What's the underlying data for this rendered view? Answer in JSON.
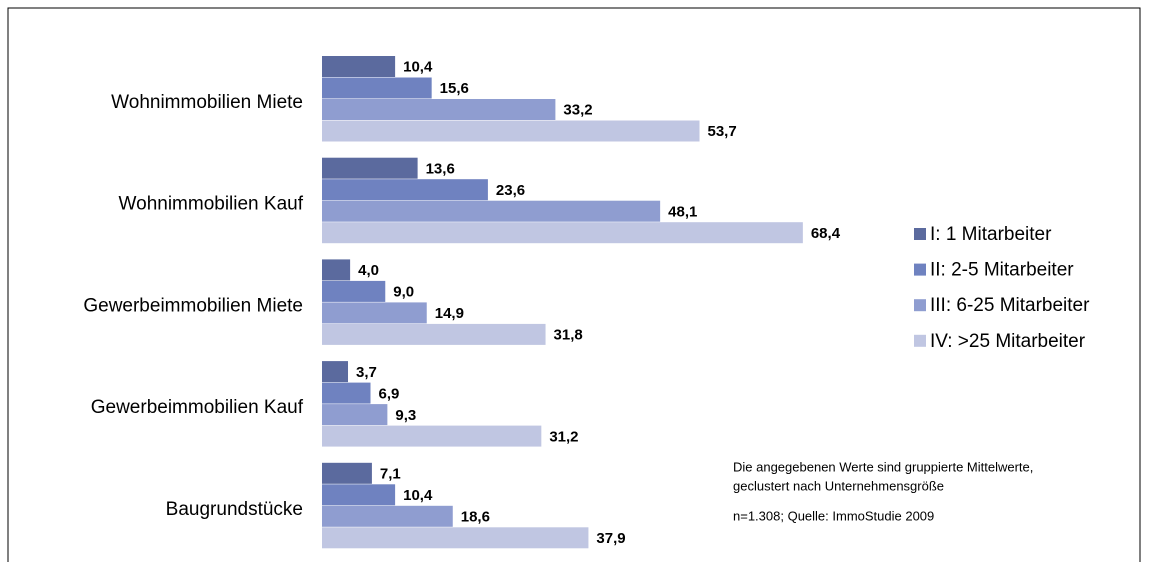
{
  "chart_data": {
    "type": "hbar",
    "categories": [
      "Wohnimmobilien Miete",
      "Wohnimmobilien Kauf",
      "Gewerbeimmobilien Miete",
      "Gewerbeimmobilien Kauf",
      "Baugrundstücke"
    ],
    "series": [
      {
        "name": "I: 1 Mitarbeiter",
        "color": "#5b6a9e",
        "values": [
          10.4,
          13.6,
          4.0,
          3.7,
          7.1
        ],
        "value_labels": [
          "10,4",
          "13,6",
          "4,0",
          "3,7",
          "7,1"
        ]
      },
      {
        "name": "II: 2-5 Mitarbeiter",
        "color": "#6f82c0",
        "values": [
          15.6,
          23.6,
          9.0,
          6.9,
          10.4
        ],
        "value_labels": [
          "15,6",
          "23,6",
          "9,0",
          "6,9",
          "10,4"
        ]
      },
      {
        "name": "III: 6-25 Mitarbeiter",
        "color": "#8f9dd0",
        "values": [
          33.2,
          48.1,
          14.9,
          9.3,
          18.6
        ],
        "value_labels": [
          "33,2",
          "48,1",
          "14,9",
          "9,3",
          "18,6"
        ]
      },
      {
        "name": "IV: >25 Mitarbeiter",
        "color": "#c0c6e2",
        "values": [
          53.7,
          68.4,
          31.8,
          31.2,
          37.9
        ],
        "value_labels": [
          "53,7",
          "68,4",
          "31,8",
          "31,2",
          "37,9"
        ]
      }
    ],
    "annotations": [
      "Die angegebenen Werte sind gruppierte Mittelwerte,",
      "geclustert nach Unternehmensgröße",
      "n=1.308; Quelle:  ImmoStudie 2009"
    ],
    "legend": "right"
  }
}
